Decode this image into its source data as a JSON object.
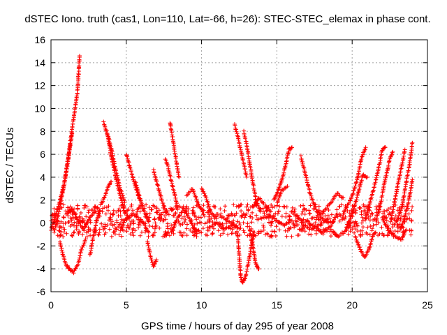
{
  "chart_data": {
    "type": "scatter",
    "title": "dSTEC Iono. truth (cas1, Lon=110, Lat=-66, h=26): STEC-STEC_elemax in phase cont.",
    "xlabel": "GPS time / hours of day 295 of year 2008",
    "ylabel": "dSTEC  / TECUs",
    "xlim": [
      0,
      25
    ],
    "ylim": [
      -6,
      16
    ],
    "xticks": [
      0,
      5,
      10,
      15,
      20,
      25
    ],
    "yticks": [
      -6,
      -4,
      -2,
      0,
      2,
      4,
      6,
      8,
      10,
      12,
      14,
      16
    ],
    "grid": true,
    "legend": "none",
    "marker": "+",
    "color": "#ff0000",
    "arcs": [
      [
        [
          0.0,
          -0.6
        ],
        [
          0.3,
          0.6
        ],
        [
          0.6,
          2.0
        ],
        [
          0.9,
          3.6
        ],
        [
          1.2,
          6.0
        ],
        [
          1.4,
          7.8
        ]
      ],
      [
        [
          0.2,
          -0.8
        ],
        [
          0.5,
          0.8
        ],
        [
          0.8,
          2.8
        ],
        [
          1.0,
          4.4
        ],
        [
          1.2,
          6.2
        ],
        [
          1.4,
          8.2
        ],
        [
          1.6,
          10.0
        ],
        [
          1.75,
          11.4
        ],
        [
          1.9,
          14.6
        ]
      ],
      [
        [
          0.6,
          -1.6
        ],
        [
          0.8,
          -2.8
        ],
        [
          1.0,
          -3.6
        ],
        [
          1.2,
          -4.0
        ],
        [
          1.5,
          -4.3
        ],
        [
          1.8,
          -3.6
        ],
        [
          2.0,
          -2.4
        ],
        [
          2.3,
          -1.4
        ]
      ],
      [
        [
          1.0,
          0.8
        ],
        [
          1.4,
          1.2
        ],
        [
          1.8,
          0.2
        ],
        [
          2.2,
          -0.6
        ],
        [
          2.6,
          0.6
        ],
        [
          3.0,
          1.0
        ]
      ],
      [
        [
          2.6,
          -2.8
        ],
        [
          2.8,
          -1.2
        ],
        [
          3.0,
          0.0
        ],
        [
          3.2,
          0.8
        ]
      ],
      [
        [
          3.3,
          1.6
        ],
        [
          3.6,
          2.4
        ],
        [
          3.8,
          3.2
        ],
        [
          4.0,
          3.6
        ]
      ],
      [
        [
          3.5,
          8.8
        ],
        [
          3.8,
          7.4
        ],
        [
          4.0,
          5.8
        ],
        [
          4.3,
          4.0
        ],
        [
          4.6,
          2.4
        ],
        [
          4.9,
          1.0
        ],
        [
          5.2,
          0.4
        ]
      ],
      [
        [
          3.7,
          8.0
        ],
        [
          4.0,
          6.6
        ],
        [
          4.3,
          4.6
        ],
        [
          4.6,
          3.0
        ],
        [
          4.9,
          1.8
        ]
      ],
      [
        [
          4.6,
          -0.6
        ],
        [
          5.0,
          0.4
        ],
        [
          5.5,
          0.8
        ],
        [
          6.0,
          0.2
        ],
        [
          6.5,
          -0.8
        ]
      ],
      [
        [
          5.0,
          6.0
        ],
        [
          5.3,
          4.6
        ],
        [
          5.6,
          3.2
        ],
        [
          5.9,
          2.0
        ]
      ],
      [
        [
          5.6,
          3.6
        ],
        [
          5.9,
          2.2
        ],
        [
          6.2,
          1.0
        ],
        [
          6.5,
          0.2
        ]
      ],
      [
        [
          6.4,
          -1.6
        ],
        [
          6.6,
          -2.8
        ],
        [
          6.8,
          -3.8
        ],
        [
          7.0,
          -3.2
        ]
      ],
      [
        [
          6.8,
          4.6
        ],
        [
          7.1,
          3.2
        ],
        [
          7.4,
          1.8
        ],
        [
          7.7,
          0.8
        ]
      ],
      [
        [
          7.6,
          5.6
        ],
        [
          7.8,
          4.8
        ],
        [
          8.0,
          3.6
        ],
        [
          8.2,
          2.6
        ],
        [
          8.4,
          1.4
        ]
      ],
      [
        [
          7.9,
          8.8
        ],
        [
          8.1,
          7.2
        ],
        [
          8.3,
          5.6
        ],
        [
          8.5,
          4.0
        ]
      ],
      [
        [
          8.0,
          -0.8
        ],
        [
          8.4,
          0.4
        ],
        [
          8.8,
          1.2
        ],
        [
          9.2,
          0.4
        ],
        [
          9.6,
          -0.8
        ]
      ],
      [
        [
          9.0,
          2.4
        ],
        [
          9.4,
          3.0
        ],
        [
          9.8,
          1.6
        ],
        [
          10.2,
          0.6
        ]
      ],
      [
        [
          10.0,
          3.0
        ],
        [
          10.3,
          2.2
        ],
        [
          10.6,
          1.0
        ],
        [
          11.0,
          0.4
        ]
      ],
      [
        [
          10.5,
          -0.4
        ],
        [
          11.0,
          0.0
        ],
        [
          11.5,
          -0.6
        ],
        [
          12.0,
          -0.2
        ]
      ],
      [
        [
          11.0,
          0.8
        ],
        [
          11.5,
          0.4
        ],
        [
          12.0,
          0.0
        ],
        [
          12.4,
          -0.4
        ]
      ],
      [
        [
          12.2,
          8.6
        ],
        [
          12.4,
          7.6
        ],
        [
          12.6,
          6.4
        ],
        [
          12.8,
          5.2
        ],
        [
          13.0,
          4.0
        ]
      ],
      [
        [
          12.4,
          -1.0
        ],
        [
          12.5,
          -3.0
        ],
        [
          12.6,
          -4.6
        ],
        [
          12.7,
          -5.2
        ],
        [
          12.9,
          -4.8
        ],
        [
          13.1,
          -3.6
        ],
        [
          13.3,
          -2.0
        ],
        [
          13.5,
          -0.8
        ]
      ],
      [
        [
          12.8,
          8.0
        ],
        [
          13.0,
          6.8
        ],
        [
          13.2,
          5.2
        ],
        [
          13.4,
          3.6
        ],
        [
          13.6,
          2.0
        ],
        [
          13.9,
          1.0
        ]
      ],
      [
        [
          13.2,
          -0.6
        ],
        [
          13.4,
          -2.0
        ],
        [
          13.6,
          -3.6
        ],
        [
          13.8,
          -4.0
        ]
      ],
      [
        [
          13.4,
          1.4
        ],
        [
          13.8,
          2.2
        ],
        [
          14.2,
          1.6
        ],
        [
          14.6,
          1.0
        ]
      ],
      [
        [
          14.0,
          0.4
        ],
        [
          14.5,
          0.6
        ],
        [
          15.0,
          0.2
        ],
        [
          15.5,
          -0.2
        ],
        [
          16.0,
          0.2
        ]
      ],
      [
        [
          14.8,
          2.0
        ],
        [
          15.2,
          3.2
        ],
        [
          15.5,
          4.6
        ],
        [
          15.8,
          6.4
        ],
        [
          16.0,
          6.6
        ]
      ],
      [
        [
          15.0,
          1.6
        ],
        [
          15.3,
          2.8
        ],
        [
          15.7,
          3.2
        ]
      ],
      [
        [
          16.6,
          5.8
        ],
        [
          16.9,
          4.2
        ],
        [
          17.2,
          2.6
        ],
        [
          17.6,
          1.2
        ],
        [
          18.0,
          0.4
        ],
        [
          18.4,
          0.0
        ]
      ],
      [
        [
          16.0,
          1.0
        ],
        [
          16.6,
          0.2
        ],
        [
          17.2,
          -0.6
        ],
        [
          17.8,
          -0.2
        ],
        [
          18.4,
          0.4
        ]
      ],
      [
        [
          17.0,
          0.2
        ],
        [
          17.6,
          -0.4
        ],
        [
          18.0,
          -0.8
        ],
        [
          18.6,
          -0.2
        ],
        [
          19.0,
          0.8
        ]
      ],
      [
        [
          18.0,
          0.8
        ],
        [
          18.6,
          1.8
        ],
        [
          19.0,
          2.6
        ],
        [
          19.4,
          2.2
        ]
      ],
      [
        [
          18.6,
          -0.6
        ],
        [
          19.0,
          -1.2
        ],
        [
          19.5,
          -0.8
        ],
        [
          19.9,
          0.0
        ]
      ],
      [
        [
          19.4,
          0.8
        ],
        [
          19.9,
          2.0
        ],
        [
          20.3,
          3.6
        ],
        [
          20.6,
          5.6
        ],
        [
          20.9,
          6.6
        ]
      ],
      [
        [
          19.6,
          -0.4
        ],
        [
          20.0,
          0.8
        ],
        [
          20.4,
          2.6
        ],
        [
          20.7,
          4.2
        ],
        [
          21.0,
          4.0
        ]
      ],
      [
        [
          20.2,
          -1.2
        ],
        [
          20.5,
          -2.2
        ],
        [
          20.8,
          -3.0
        ],
        [
          21.1,
          -2.4
        ],
        [
          21.4,
          -1.0
        ]
      ],
      [
        [
          20.9,
          0.4
        ],
        [
          21.3,
          2.4
        ],
        [
          21.7,
          4.4
        ],
        [
          22.0,
          6.4
        ],
        [
          22.2,
          6.6
        ]
      ],
      [
        [
          21.6,
          0.2
        ],
        [
          21.9,
          1.8
        ],
        [
          22.2,
          3.8
        ],
        [
          22.5,
          5.6
        ],
        [
          22.7,
          6.2
        ]
      ],
      [
        [
          22.0,
          0.4
        ],
        [
          22.4,
          -0.6
        ],
        [
          22.9,
          -1.2
        ],
        [
          23.3,
          -1.4
        ],
        [
          23.6,
          -0.6
        ]
      ],
      [
        [
          22.6,
          0.4
        ],
        [
          22.9,
          2.4
        ],
        [
          23.2,
          4.4
        ],
        [
          23.5,
          6.4
        ]
      ],
      [
        [
          23.0,
          0.2
        ],
        [
          23.3,
          1.4
        ],
        [
          23.6,
          3.6
        ],
        [
          23.9,
          5.8
        ],
        [
          24.0,
          7.0
        ]
      ],
      [
        [
          23.2,
          -0.6
        ],
        [
          23.5,
          0.6
        ],
        [
          23.8,
          2.2
        ],
        [
          24.0,
          3.8
        ]
      ]
    ],
    "scatter_band": {
      "x_range": [
        0.0,
        24.0
      ],
      "y_range": [
        -1.2,
        1.6
      ]
    }
  }
}
